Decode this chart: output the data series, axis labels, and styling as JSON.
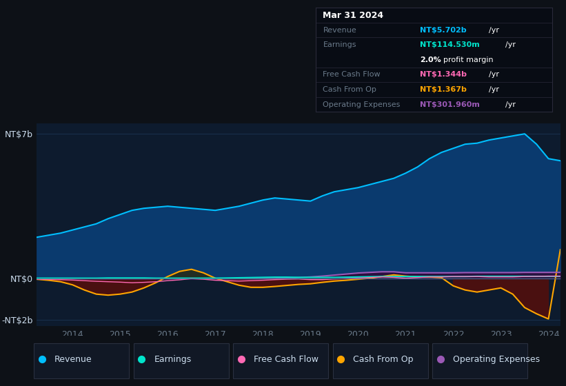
{
  "bg_color": "#0d1117",
  "plot_bg_color": "#0d1b2e",
  "title": "Mar 31 2024",
  "years": [
    2013.25,
    2013.5,
    2013.75,
    2014.0,
    2014.25,
    2014.5,
    2014.75,
    2015.0,
    2015.25,
    2015.5,
    2015.75,
    2016.0,
    2016.25,
    2016.5,
    2016.75,
    2017.0,
    2017.25,
    2017.5,
    2017.75,
    2018.0,
    2018.25,
    2018.5,
    2018.75,
    2019.0,
    2019.25,
    2019.5,
    2019.75,
    2020.0,
    2020.25,
    2020.5,
    2020.75,
    2021.0,
    2021.25,
    2021.5,
    2021.75,
    2022.0,
    2022.25,
    2022.5,
    2022.75,
    2023.0,
    2023.25,
    2023.5,
    2023.75,
    2024.0,
    2024.25
  ],
  "revenue": [
    2.0,
    2.1,
    2.2,
    2.35,
    2.5,
    2.65,
    2.9,
    3.1,
    3.3,
    3.4,
    3.45,
    3.5,
    3.45,
    3.4,
    3.35,
    3.3,
    3.4,
    3.5,
    3.65,
    3.8,
    3.9,
    3.85,
    3.8,
    3.75,
    4.0,
    4.2,
    4.3,
    4.4,
    4.55,
    4.7,
    4.85,
    5.1,
    5.4,
    5.8,
    6.1,
    6.3,
    6.5,
    6.55,
    6.7,
    6.8,
    6.9,
    7.0,
    6.5,
    5.8,
    5.7
  ],
  "earnings": [
    0.02,
    0.02,
    0.02,
    0.02,
    0.02,
    0.02,
    0.03,
    0.03,
    0.03,
    0.03,
    0.02,
    0.02,
    0.02,
    0.02,
    0.02,
    0.02,
    0.03,
    0.04,
    0.05,
    0.06,
    0.07,
    0.07,
    0.06,
    0.06,
    0.06,
    0.06,
    0.07,
    0.08,
    0.09,
    0.1,
    0.1,
    0.1,
    0.1,
    0.1,
    0.1,
    0.1,
    0.1,
    0.11,
    0.11,
    0.11,
    0.11,
    0.11,
    0.11,
    0.11,
    0.11
  ],
  "free_cash_flow": [
    -0.03,
    -0.04,
    -0.05,
    -0.07,
    -0.1,
    -0.13,
    -0.15,
    -0.17,
    -0.2,
    -0.18,
    -0.15,
    -0.1,
    -0.06,
    0.0,
    -0.03,
    -0.08,
    -0.1,
    -0.12,
    -0.1,
    -0.08,
    -0.05,
    -0.03,
    -0.02,
    -0.05,
    -0.05,
    -0.02,
    0.0,
    0.02,
    0.05,
    0.08,
    0.06,
    0.02,
    0.05,
    0.08,
    0.08,
    0.1,
    0.1,
    0.1,
    0.08,
    0.08,
    0.08,
    0.1,
    0.11,
    0.12,
    0.12
  ],
  "cash_from_op": [
    -0.03,
    -0.08,
    -0.15,
    -0.3,
    -0.55,
    -0.75,
    -0.8,
    -0.75,
    -0.65,
    -0.45,
    -0.2,
    0.1,
    0.35,
    0.45,
    0.28,
    0.02,
    -0.15,
    -0.32,
    -0.42,
    -0.42,
    -0.38,
    -0.33,
    -0.28,
    -0.25,
    -0.18,
    -0.12,
    -0.08,
    -0.03,
    0.02,
    0.1,
    0.18,
    0.12,
    0.08,
    0.08,
    0.05,
    -0.35,
    -0.55,
    -0.65,
    -0.55,
    -0.45,
    -0.75,
    -1.4,
    -1.7,
    -1.95,
    1.4
  ],
  "operating_expenses": [
    0.0,
    0.0,
    0.0,
    0.0,
    0.0,
    0.0,
    0.0,
    0.0,
    0.0,
    0.0,
    0.0,
    0.0,
    0.0,
    0.0,
    0.0,
    0.0,
    0.0,
    0.0,
    0.0,
    0.0,
    0.0,
    0.02,
    0.05,
    0.08,
    0.12,
    0.17,
    0.22,
    0.27,
    0.3,
    0.33,
    0.33,
    0.28,
    0.28,
    0.28,
    0.28,
    0.28,
    0.29,
    0.29,
    0.29,
    0.29,
    0.29,
    0.3,
    0.3,
    0.3,
    0.3
  ],
  "ylim": [
    -2.3,
    7.5
  ],
  "yticks": [
    -2,
    0,
    7
  ],
  "ytick_labels": [
    "-NT$2b",
    "NT$0",
    "NT$7b"
  ],
  "xticks": [
    2014,
    2015,
    2016,
    2017,
    2018,
    2019,
    2020,
    2021,
    2022,
    2023,
    2024
  ],
  "legend_items": [
    {
      "label": "Revenue",
      "color": "#00bfff"
    },
    {
      "label": "Earnings",
      "color": "#00e5cc"
    },
    {
      "label": "Free Cash Flow",
      "color": "#ff69b4"
    },
    {
      "label": "Cash From Op",
      "color": "#ffa500"
    },
    {
      "label": "Operating Expenses",
      "color": "#9b59b6"
    }
  ],
  "revenue_color": "#00bfff",
  "revenue_fill_color": "#0a3a6e",
  "earnings_color": "#00e5cc",
  "free_cash_flow_color": "#ff69b4",
  "cash_from_op_color": "#ffa500",
  "cash_from_op_fill_neg": "#4a1010",
  "cash_from_op_fill_pos": "#2a2a10",
  "operating_expenses_color": "#9b59b6",
  "operating_expenses_fill": "#2a1040",
  "grid_color": "#1e3a5a",
  "zero_line_color": "#4a6a8a",
  "table_bg": "#080c14",
  "table_border": "#2a2a3a",
  "text_dim": "#6a7a8a",
  "text_light": "#ccddee"
}
